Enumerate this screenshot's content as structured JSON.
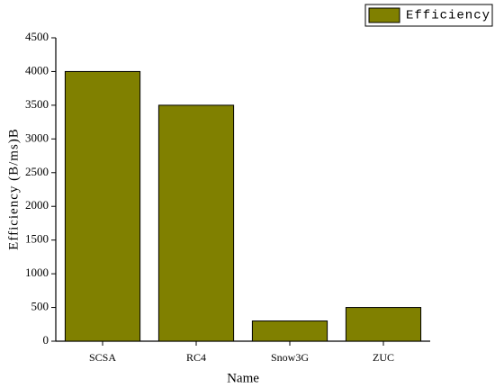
{
  "chart_data": {
    "type": "bar",
    "categories": [
      "SCSA",
      "RC4",
      "Snow3G",
      "ZUC"
    ],
    "series": [
      {
        "name": "Efficiency",
        "color": "#808000",
        "values": [
          4000,
          3500,
          300,
          500
        ]
      }
    ],
    "ylim": [
      0,
      4500
    ],
    "yticks": [
      0,
      500,
      1000,
      1500,
      2000,
      2500,
      3000,
      3500,
      4000,
      4500
    ],
    "x_label": "Name",
    "y_label": "Efficiency (B/ms)B",
    "legend": "top-right",
    "grid": false
  }
}
